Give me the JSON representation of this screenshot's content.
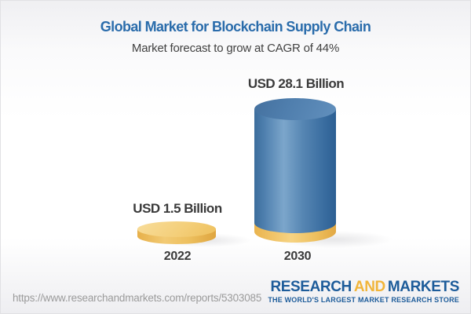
{
  "header": {
    "title": "Global Market for Blockchain Supply Chain",
    "subtitle": "Market forecast to grow at CAGR of 44%"
  },
  "chart_data": {
    "type": "bar",
    "title": "Global Market for Blockchain Supply Chain",
    "annotation": "Market forecast to grow at CAGR of 44%",
    "categories": [
      "2022",
      "2030"
    ],
    "values": [
      1.5,
      28.1
    ],
    "unit": "USD Billion",
    "value_labels": [
      "USD 1.5 Billion",
      "USD 28.1 Billion"
    ],
    "cagr": "44%",
    "bar_colors": [
      "#f2c96d",
      "#4d80b0"
    ],
    "legend": "none",
    "grid": "off",
    "ylim": [
      0,
      30
    ]
  },
  "chart": {
    "bars": [
      {
        "year": "2022",
        "value_label": "USD 1.5 Billion"
      },
      {
        "year": "2030",
        "value_label": "USD 28.1 Billion"
      }
    ]
  },
  "footer": {
    "url": "https://www.researchandmarkets.com/reports/5303085",
    "logo": {
      "word1": "RESEARCH",
      "word2": "AND",
      "word3": "MARKETS",
      "tagline": "THE WORLD'S LARGEST MARKET RESEARCH STORE"
    }
  },
  "colors": {
    "title_blue": "#2a6cab",
    "text_dark": "#3a3a3a",
    "bar_blue": "#4d80b0",
    "bar_gold": "#f0c468",
    "logo_blue": "#1d5c9a",
    "logo_gold": "#f1b53a",
    "url_gray": "#9b9b9b"
  }
}
